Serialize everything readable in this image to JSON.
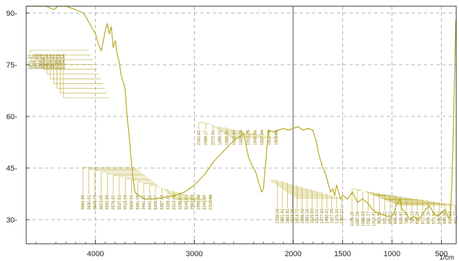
{
  "chart_data": {
    "type": "line",
    "title": "",
    "xlabel": "1/cm",
    "ylabel": "",
    "xlim": [
      4700,
      350
    ],
    "ylim": [
      23,
      92
    ],
    "x_ticks": [
      {
        "value": 4000,
        "label": "4000"
      },
      {
        "value": 3000,
        "label": "3000"
      },
      {
        "value": 2000,
        "label": "2000"
      },
      {
        "value": 1500,
        "label": "1500"
      },
      {
        "value": 1000,
        "label": "1000"
      },
      {
        "value": 500,
        "label": "500"
      }
    ],
    "y_ticks": [
      {
        "value": 30,
        "label": "30-"
      },
      {
        "value": 45,
        "label": "45-"
      },
      {
        "value": 60,
        "label": "60-"
      },
      {
        "value": 75,
        "label": "75-"
      },
      {
        "value": 90,
        "label": "90-"
      }
    ],
    "grid": true,
    "line_color": "#b5a51a",
    "series": [
      {
        "x": [
          4700,
          4500,
          4420,
          4380,
          4300,
          4200,
          4120,
          4060,
          4000,
          3970,
          3940,
          3920,
          3900,
          3880,
          3860,
          3840,
          3820,
          3800,
          3780,
          3760,
          3740,
          3720,
          3700,
          3680,
          3660,
          3640,
          3620,
          3600,
          3560,
          3500,
          3400,
          3300,
          3200,
          3100,
          3050,
          3000,
          2950,
          2900,
          2850,
          2800,
          2700,
          2600,
          2500,
          2450,
          2400,
          2380,
          2360,
          2340,
          2320,
          2300,
          2250,
          2200,
          2150,
          2100,
          2050,
          2000,
          1950,
          1900,
          1850,
          1800,
          1780,
          1760,
          1740,
          1720,
          1700,
          1680,
          1660,
          1640,
          1620,
          1600,
          1580,
          1560,
          1540,
          1520,
          1500,
          1450,
          1400,
          1350,
          1300,
          1250,
          1200,
          1150,
          1100,
          1050,
          1000,
          980,
          960,
          940,
          920,
          900,
          860,
          820,
          780,
          740,
          700,
          660,
          620,
          580,
          540,
          500,
          460,
          430,
          410,
          395,
          380,
          365,
          355
        ],
        "y": [
          92,
          92,
          91,
          92,
          92,
          91,
          90,
          87,
          84,
          81,
          79,
          82,
          85,
          87,
          84,
          86,
          80,
          82,
          78,
          76,
          72,
          70,
          68,
          60,
          55,
          48,
          42,
          38,
          37,
          36,
          36,
          36.5,
          37,
          38,
          39,
          40,
          41.5,
          43,
          45,
          47,
          50,
          53,
          55,
          48,
          45,
          44,
          42,
          40,
          38,
          39,
          56,
          55.5,
          56,
          56.5,
          56,
          56.5,
          57,
          56,
          56.5,
          56,
          54,
          52,
          49,
          47,
          45,
          44,
          42,
          40,
          38,
          39,
          37,
          40,
          38,
          36,
          37,
          36,
          38,
          35,
          36,
          35,
          33,
          32,
          31.5,
          31,
          31,
          32,
          34,
          35,
          36,
          33,
          32,
          30,
          31,
          30,
          31,
          33,
          34,
          32,
          31,
          32,
          33,
          30.5,
          31,
          40,
          55,
          75,
          88
        ]
      }
    ],
    "peak_labels": [
      "3971.57",
      "3939.09",
      "3917.62",
      "3902.10",
      "3890.67",
      "3857.34",
      "3825.34",
      "3811.07",
      "3739.81",
      "3734.19",
      "3724.54",
      "3664.96",
      "3630.91",
      "3648.79",
      "3613.09",
      "3592.96",
      "3576.92",
      "3537.63",
      "3518.09",
      "3509.94",
      "3481.05",
      "3461.81",
      "3441.62",
      "3406.57",
      "3397.84",
      "3339.10",
      "3313.06",
      "3296.61",
      "3241.81",
      "2962.62",
      "2950.34",
      "2341.37",
      "2316.48",
      "2161.62",
      "2086.17",
      "2072.84",
      "1999.71",
      "1986.34",
      "1948.44",
      "1928.38",
      "1913.25",
      "1849.61",
      "1837.24",
      "1822.79",
      "1803.86",
      "1739.09",
      "1691.41",
      "1663.81",
      "1643.56",
      "1614.72",
      "1596.09",
      "1551.04",
      "1529.83",
      "1513.01",
      "1477.60",
      "1450.41",
      "1417.45",
      "1375.81",
      "1362.21",
      "1136.24",
      "1097.09",
      "1065.93",
      "1031.17",
      "1013.41",
      "963.56",
      "931.62",
      "883.17",
      "854.49",
      "819.87",
      "785.27",
      "724.13",
      "683.29",
      "671.14",
      "609.16",
      "571.84",
      "536.43",
      "430.96",
      "415.62",
      "401.77"
    ]
  }
}
